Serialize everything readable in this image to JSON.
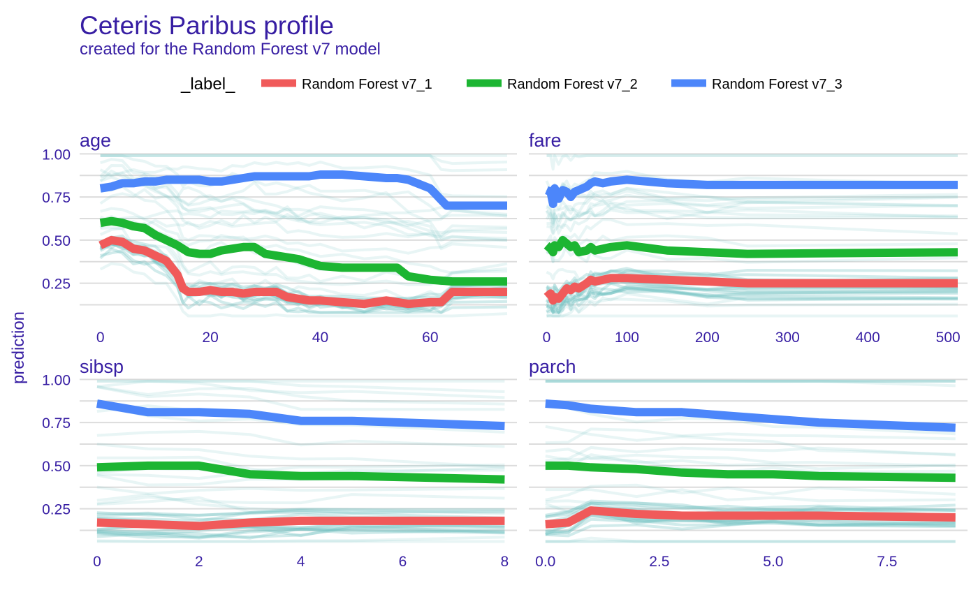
{
  "colors": {
    "text": "#371ea3",
    "grid": "#dcdcdc",
    "background_lines": "#71c1c1",
    "series": [
      "#f05a5a",
      "#1cb532",
      "#4c86fa"
    ]
  },
  "chart_data": {
    "type": "line",
    "title": "Ceteris Paribus profile",
    "subtitle": "created for the Random Forest v7 model",
    "ylabel": "prediction",
    "legend": {
      "title": "_label_",
      "position": "top",
      "entries": [
        "Random Forest v7_1",
        "Random Forest v7_2",
        "Random Forest v7_3"
      ]
    },
    "grid": true,
    "shared_ylim": [
      0.05,
      1.03
    ],
    "y_ticks": [
      0.25,
      0.5,
      0.75,
      1.0
    ],
    "y_tick_labels": [
      "0.25",
      "0.50",
      "0.75",
      "1.00"
    ],
    "panels": [
      {
        "variable": "age",
        "xlim": [
          -2,
          74
        ],
        "x_ticks": [
          0,
          20,
          40,
          60
        ],
        "x_tick_labels": [
          "0",
          "20",
          "40",
          "60"
        ],
        "series": [
          {
            "name": "Random Forest v7_1",
            "x": [
              0,
              2,
              4,
              6,
              8,
              10,
              12,
              14,
              15,
              16,
              18,
              20,
              22,
              24,
              26,
              28,
              30,
              32,
              34,
              36,
              38,
              40,
              44,
              48,
              52,
              56,
              60,
              62,
              64,
              74
            ],
            "y": [
              0.47,
              0.5,
              0.49,
              0.45,
              0.44,
              0.41,
              0.38,
              0.3,
              0.22,
              0.2,
              0.2,
              0.21,
              0.2,
              0.2,
              0.19,
              0.2,
              0.2,
              0.2,
              0.17,
              0.16,
              0.15,
              0.15,
              0.14,
              0.13,
              0.15,
              0.13,
              0.14,
              0.14,
              0.2,
              0.2
            ]
          },
          {
            "name": "Random Forest v7_2",
            "x": [
              0,
              2,
              4,
              6,
              8,
              10,
              12,
              14,
              16,
              18,
              20,
              22,
              24,
              26,
              28,
              30,
              32,
              34,
              36,
              38,
              40,
              44,
              48,
              52,
              54,
              56,
              60,
              64,
              74
            ],
            "y": [
              0.6,
              0.61,
              0.6,
              0.58,
              0.57,
              0.53,
              0.5,
              0.47,
              0.43,
              0.42,
              0.42,
              0.44,
              0.45,
              0.46,
              0.46,
              0.42,
              0.41,
              0.4,
              0.39,
              0.37,
              0.35,
              0.34,
              0.34,
              0.34,
              0.34,
              0.29,
              0.27,
              0.26,
              0.26
            ]
          },
          {
            "name": "Random Forest v7_3",
            "x": [
              0,
              2,
              4,
              6,
              8,
              10,
              12,
              14,
              16,
              18,
              20,
              22,
              24,
              26,
              28,
              30,
              32,
              34,
              36,
              38,
              40,
              44,
              48,
              52,
              54,
              56,
              60,
              63,
              74
            ],
            "y": [
              0.8,
              0.81,
              0.83,
              0.83,
              0.84,
              0.84,
              0.85,
              0.85,
              0.85,
              0.85,
              0.84,
              0.84,
              0.85,
              0.86,
              0.87,
              0.87,
              0.87,
              0.87,
              0.87,
              0.87,
              0.88,
              0.88,
              0.87,
              0.86,
              0.86,
              0.85,
              0.8,
              0.7,
              0.7
            ]
          }
        ]
      },
      {
        "variable": "fare",
        "xlim": [
          -10,
          512
        ],
        "x_ticks": [
          0,
          100,
          200,
          300,
          400,
          500
        ],
        "x_tick_labels": [
          "0",
          "100",
          "200",
          "300",
          "400",
          "500"
        ],
        "series": [
          {
            "name": "Random Forest v7_1",
            "x": [
              0,
              5,
              8,
              10,
              15,
              20,
              25,
              30,
              35,
              40,
              50,
              55,
              60,
              70,
              80,
              100,
              150,
              200,
              250,
              512
            ],
            "y": [
              0.17,
              0.19,
              0.15,
              0.17,
              0.16,
              0.19,
              0.22,
              0.21,
              0.23,
              0.22,
              0.25,
              0.27,
              0.26,
              0.27,
              0.28,
              0.28,
              0.27,
              0.26,
              0.25,
              0.25
            ]
          },
          {
            "name": "Random Forest v7_2",
            "x": [
              0,
              5,
              8,
              10,
              15,
              20,
              25,
              30,
              35,
              40,
              50,
              55,
              60,
              70,
              80,
              100,
              150,
              200,
              250,
              512
            ],
            "y": [
              0.47,
              0.45,
              0.43,
              0.47,
              0.46,
              0.5,
              0.48,
              0.46,
              0.47,
              0.43,
              0.44,
              0.46,
              0.44,
              0.45,
              0.46,
              0.47,
              0.44,
              0.43,
              0.42,
              0.43
            ]
          },
          {
            "name": "Random Forest v7_3",
            "x": [
              0,
              5,
              8,
              10,
              15,
              20,
              25,
              30,
              35,
              40,
              50,
              55,
              60,
              70,
              80,
              100,
              150,
              200,
              250,
              512
            ],
            "y": [
              0.79,
              0.78,
              0.71,
              0.8,
              0.74,
              0.79,
              0.78,
              0.75,
              0.78,
              0.79,
              0.81,
              0.83,
              0.84,
              0.83,
              0.84,
              0.85,
              0.83,
              0.82,
              0.82,
              0.82
            ]
          }
        ]
      },
      {
        "variable": "sibsp",
        "xlim": [
          -0.15,
          8.05
        ],
        "x_ticks": [
          0,
          2,
          4,
          6,
          8
        ],
        "x_tick_labels": [
          "0",
          "2",
          "4",
          "6",
          "8"
        ],
        "series": [
          {
            "name": "Random Forest v7_1",
            "x": [
              0,
              1,
              2,
              3,
              4,
              5,
              8
            ],
            "y": [
              0.17,
              0.16,
              0.15,
              0.17,
              0.18,
              0.18,
              0.18
            ]
          },
          {
            "name": "Random Forest v7_2",
            "x": [
              0,
              1,
              2,
              3,
              4,
              5,
              8
            ],
            "y": [
              0.49,
              0.5,
              0.5,
              0.45,
              0.44,
              0.44,
              0.42
            ]
          },
          {
            "name": "Random Forest v7_3",
            "x": [
              0,
              1,
              2,
              3,
              4,
              5,
              8
            ],
            "y": [
              0.86,
              0.81,
              0.81,
              0.8,
              0.76,
              0.76,
              0.73
            ]
          }
        ]
      },
      {
        "variable": "parch",
        "xlim": [
          -0.15,
          9.05
        ],
        "x_ticks": [
          0,
          2.5,
          5,
          7.5
        ],
        "x_tick_labels": [
          "0.0",
          "2.5",
          "5.0",
          "7.5"
        ],
        "series": [
          {
            "name": "Random Forest v7_1",
            "x": [
              0,
              0.5,
              1,
              2,
              3,
              4,
              5,
              6,
              9
            ],
            "y": [
              0.16,
              0.17,
              0.24,
              0.22,
              0.21,
              0.21,
              0.21,
              0.21,
              0.2
            ]
          },
          {
            "name": "Random Forest v7_2",
            "x": [
              0,
              0.5,
              1,
              2,
              3,
              4,
              5,
              6,
              9
            ],
            "y": [
              0.5,
              0.5,
              0.49,
              0.48,
              0.46,
              0.45,
              0.45,
              0.44,
              0.43
            ]
          },
          {
            "name": "Random Forest v7_3",
            "x": [
              0,
              0.5,
              1,
              2,
              3,
              4,
              5,
              6,
              9
            ],
            "y": [
              0.86,
              0.85,
              0.83,
              0.81,
              0.81,
              0.79,
              0.77,
              0.75,
              0.72
            ]
          }
        ]
      }
    ]
  }
}
